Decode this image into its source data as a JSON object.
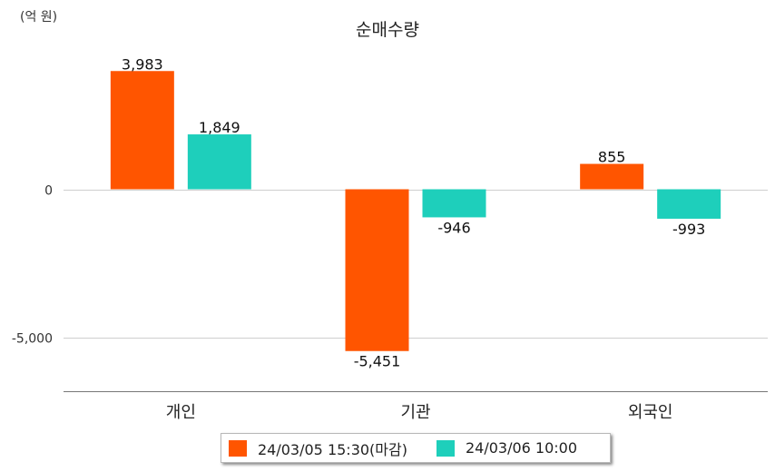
{
  "unit_label": "(억 원)",
  "chart_data": {
    "type": "bar",
    "title": "순매수량",
    "xlabel": "",
    "ylabel": "",
    "categories": [
      "개인",
      "기관",
      "외국인"
    ],
    "series": [
      {
        "name": "24/03/05 15:30(마감)",
        "color": "#ff5500",
        "values": [
          3983,
          -5451,
          855
        ],
        "labels": [
          "3,983",
          "-5,451",
          "855"
        ]
      },
      {
        "name": "24/03/06 10:00",
        "color": "#1ecfbb",
        "values": [
          1849,
          -946,
          -993
        ],
        "labels": [
          "1,849",
          "-946",
          "-993"
        ]
      }
    ],
    "yticks": [
      0,
      -5000
    ],
    "ytick_labels": [
      "0",
      "-5,000"
    ],
    "ylim": [
      -6800,
      5300
    ],
    "grid": true,
    "legend_position": "bottom"
  }
}
